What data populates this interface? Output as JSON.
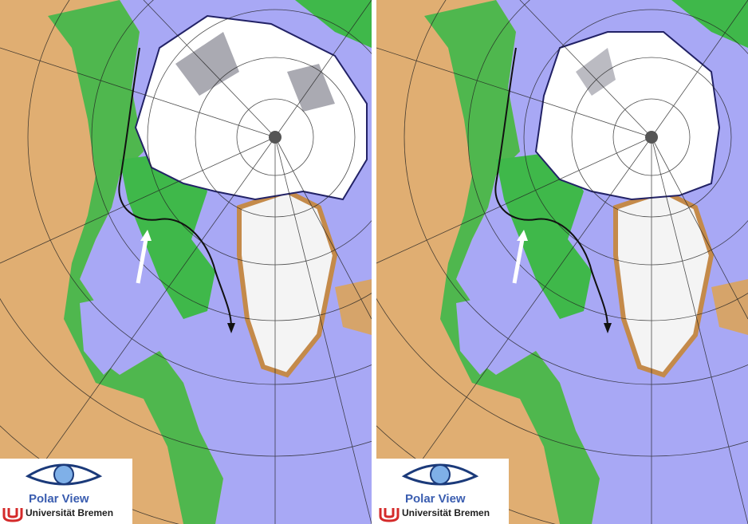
{
  "panels": [
    {
      "id": "left",
      "logo": {
        "title": "Polar View",
        "institution": "Universität Bremen"
      }
    },
    {
      "id": "right",
      "logo": {
        "title": "Polar View",
        "institution": "Universität Bremen"
      }
    }
  ],
  "colors": {
    "ocean": "#a8a8f5",
    "land_green": "#3fb84a",
    "land_tan": "#d6a46a",
    "ice": "#ffffff",
    "ice_edge": "#222266",
    "greenland_ice": "#f4f4f4",
    "grid": "#222222",
    "route_arrow": "#111111",
    "marker_arrow": "#ffffff"
  },
  "icons": [
    "polar-view-eye-logo",
    "university-bremen-u-logo",
    "north-pole-marker-icon"
  ]
}
